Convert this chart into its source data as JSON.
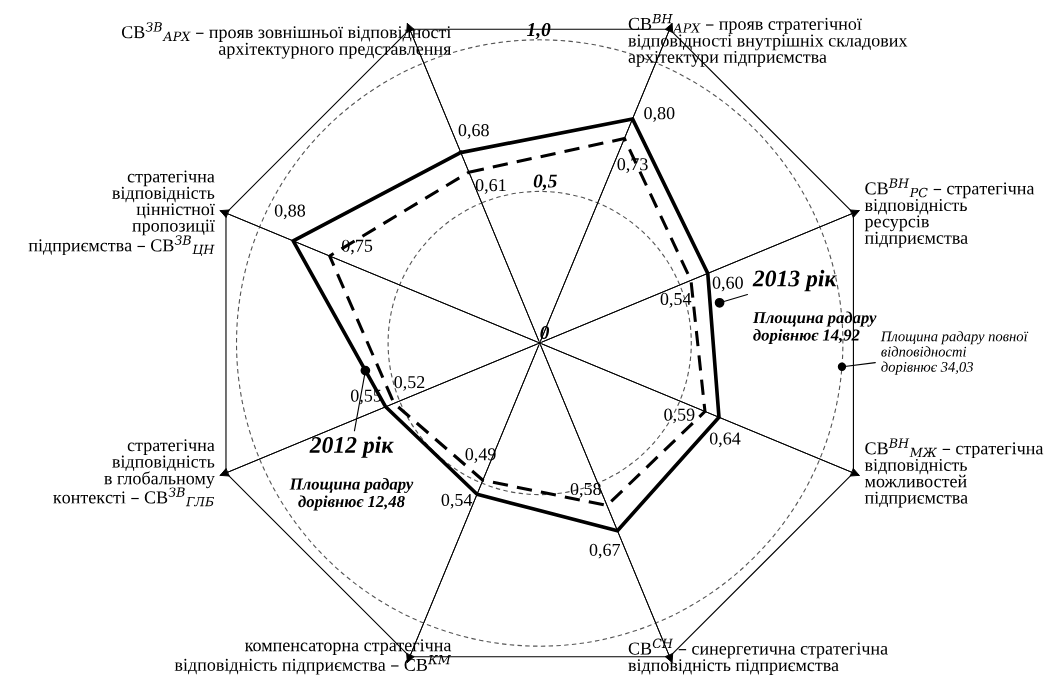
{
  "chart_data": {
    "type": "radar",
    "categories": [
      "СВ$^{ЗВ}$$_{АРХ}$ – прояв зовнішньої відповідності\nархітектурного представлення",
      "СВ$^{ВН}$$_{АРХ}$ – прояв стратегічної\nвідповідності внутрішніх складових\nархітектури підприємства",
      "СВ$^{ВН}$$_{РС}$ – стратегічна\nвідповідність\nресурсів\nпідприємства",
      "СВ$^{ВН}$$_{МЖ}$ – стратегічна\nвідповідність\nможливостей\nпідприємства",
      "СВ$^{СН}$ – синергетична стратегічна\nвідповідність підприємства",
      "компенсаторна стратегічна\nвідповідність підприємства – СВ$^{КМ}$",
      "стратегічна\nвідповідність\nв глобальному\nконтексті – СВ$^{ЗВ}$$_{ГЛБ}$",
      "стратегічна\nвідповідність\nцінністної\nпропозиції\nпідприємства – СВ$^{ЗВ}$$_{ЦН}$"
    ],
    "series": [
      {
        "name": "2013 рік",
        "color": "#000000",
        "line_style": "solid",
        "values": [
          0.68,
          0.8,
          0.6,
          0.64,
          0.67,
          0.54,
          0.55,
          0.88
        ],
        "value_labels": [
          "0,68",
          "0,80",
          "0,60",
          "0,64",
          "0,67",
          "0,54",
          "0,55",
          "0,88"
        ]
      },
      {
        "name": "2012 рік",
        "color": "#000000",
        "line_style": "dashed",
        "values": [
          0.61,
          0.73,
          0.54,
          0.59,
          0.58,
          0.49,
          0.52,
          0.75
        ],
        "value_labels": [
          "0,61",
          "0,73",
          "0,54",
          "0,59",
          "0,58",
          "0,49",
          "0,52",
          "0,75"
        ]
      }
    ],
    "ylim": [
      0,
      1.12
    ],
    "yticks": [
      {
        "value": 0,
        "label": "0"
      },
      {
        "value": 0.5,
        "label": "0,5"
      },
      {
        "value": 1.0,
        "label": "1,0"
      }
    ],
    "grid": true,
    "marker": "none",
    "annotations": [
      "Площина радару\nдорівнює 14,92",
      "Площина радару\nдорівнює 12,48",
      "Площина радару повної\nвідповідності\nдорівнює 34,03"
    ]
  }
}
